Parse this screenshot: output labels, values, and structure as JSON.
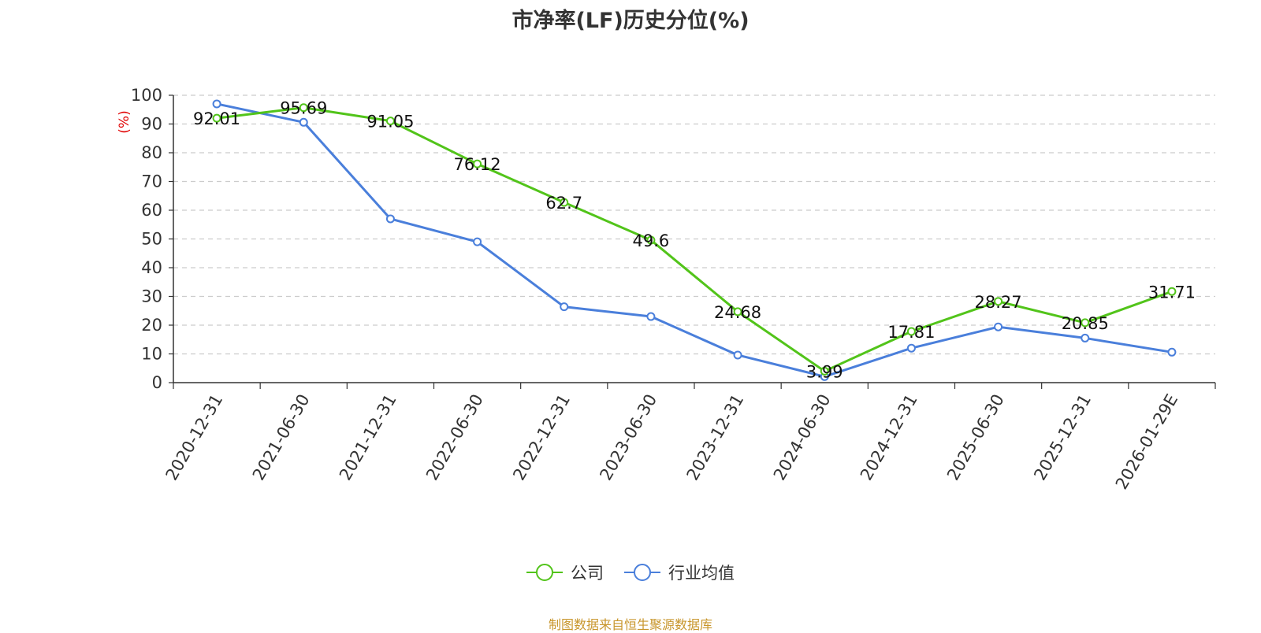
{
  "chart_data": {
    "type": "line",
    "title": "市净率(LF)历史分位(%)",
    "ylabel": "(%)",
    "xlabel": "",
    "ylim": [
      0,
      100
    ],
    "yticks": [
      0,
      10,
      20,
      30,
      40,
      50,
      60,
      70,
      80,
      90,
      100
    ],
    "grid": true,
    "legend_position": "bottom",
    "categories": [
      "2020-12-31",
      "2021-06-30",
      "2021-12-31",
      "2022-06-30",
      "2022-12-31",
      "2023-06-30",
      "2023-12-31",
      "2024-06-30",
      "2024-12-31",
      "2025-06-30",
      "2025-12-31",
      "2026-01-29E"
    ],
    "series": [
      {
        "name": "公司",
        "color": "#52c41a",
        "values": [
          92.01,
          95.69,
          91.05,
          76.12,
          62.7,
          49.6,
          24.68,
          3.99,
          17.81,
          28.27,
          20.85,
          31.71
        ],
        "show_labels": true
      },
      {
        "name": "行业均值",
        "color": "#4a7fdb",
        "values": [
          97.0,
          90.6,
          57.0,
          49.0,
          26.4,
          23.0,
          9.6,
          2.1,
          12.0,
          19.4,
          15.5,
          10.6
        ],
        "show_labels": false
      }
    ]
  },
  "source": "制图数据来自恒生聚源数据库"
}
